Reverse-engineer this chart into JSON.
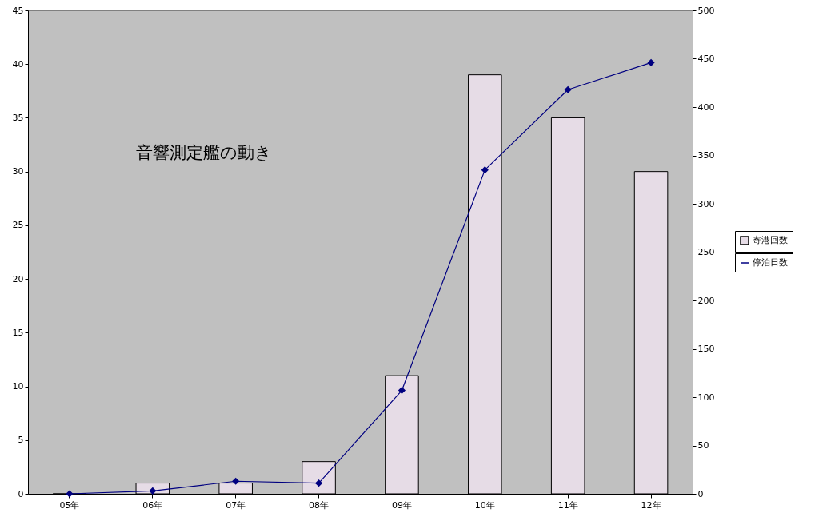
{
  "chart_data": {
    "type": "bar",
    "title": "音響測定艦の動き",
    "categories": [
      "05年",
      "06年",
      "07年",
      "08年",
      "09年",
      "10年",
      "11年",
      "12年"
    ],
    "series": [
      {
        "name": "寄港回数",
        "color": "#e6dce6",
        "values": [
          0,
          1,
          1,
          3,
          11,
          39,
          35,
          30
        ]
      },
      {
        "name": "停泊日数",
        "type": "line",
        "axis": "y2",
        "color": "#000080",
        "values": [
          0,
          3,
          13,
          11,
          107,
          335,
          418,
          446
        ]
      }
    ],
    "ylim": [
      0,
      45
    ],
    "yticks": [
      0,
      5,
      10,
      15,
      20,
      25,
      30,
      35,
      40,
      45
    ],
    "y2lim": [
      0,
      500
    ],
    "y2ticks": [
      0,
      50,
      100,
      150,
      200,
      250,
      300,
      350,
      400,
      450,
      500
    ],
    "legend": "right",
    "marker": "diamond"
  }
}
